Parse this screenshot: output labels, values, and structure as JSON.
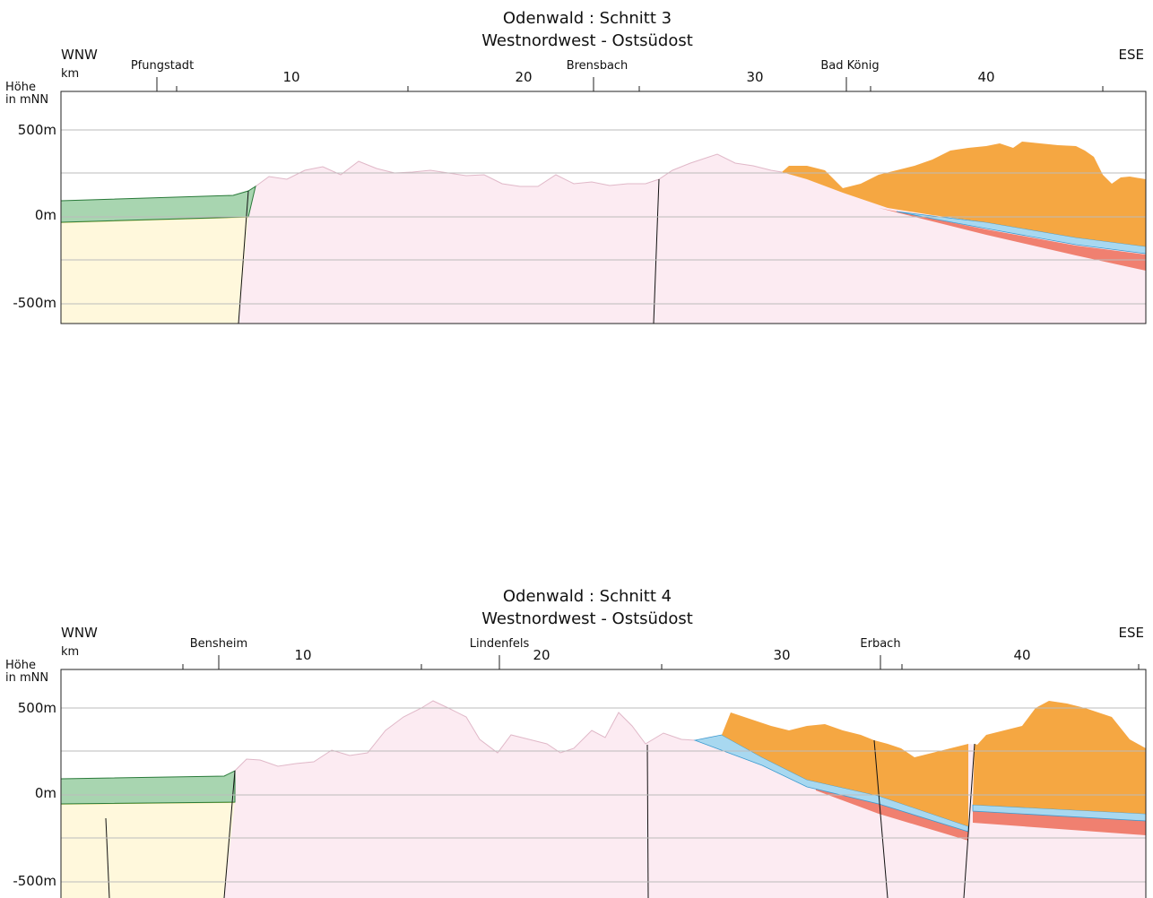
{
  "sections": [
    {
      "title": "Odenwald : Schnitt 3",
      "subtitle": "Westnordwest - Ostsüdost",
      "direction_left": "WNW",
      "direction_right": "ESE",
      "distance_unit": "km",
      "height_label": [
        "Höhe",
        "in mNN"
      ],
      "places": [
        "Pfungstadt",
        "Brensbach",
        "Bad König"
      ],
      "km_labels": [
        "10",
        "20",
        "30",
        "40"
      ],
      "height_labels": [
        "500m",
        "0m",
        "-500m"
      ]
    },
    {
      "title": "Odenwald : Schnitt 4",
      "subtitle": "Westnordwest - Ostsüdost",
      "direction_left": "WNW",
      "direction_right": "ESE",
      "distance_unit": "km",
      "height_label": [
        "Höhe",
        "in mNN"
      ],
      "places": [
        "Bensheim",
        "Lindenfels",
        "Erbach"
      ],
      "km_labels": [
        "10",
        "20",
        "30",
        "40"
      ],
      "height_labels": [
        "500m",
        "0m",
        "-500m"
      ]
    }
  ]
}
